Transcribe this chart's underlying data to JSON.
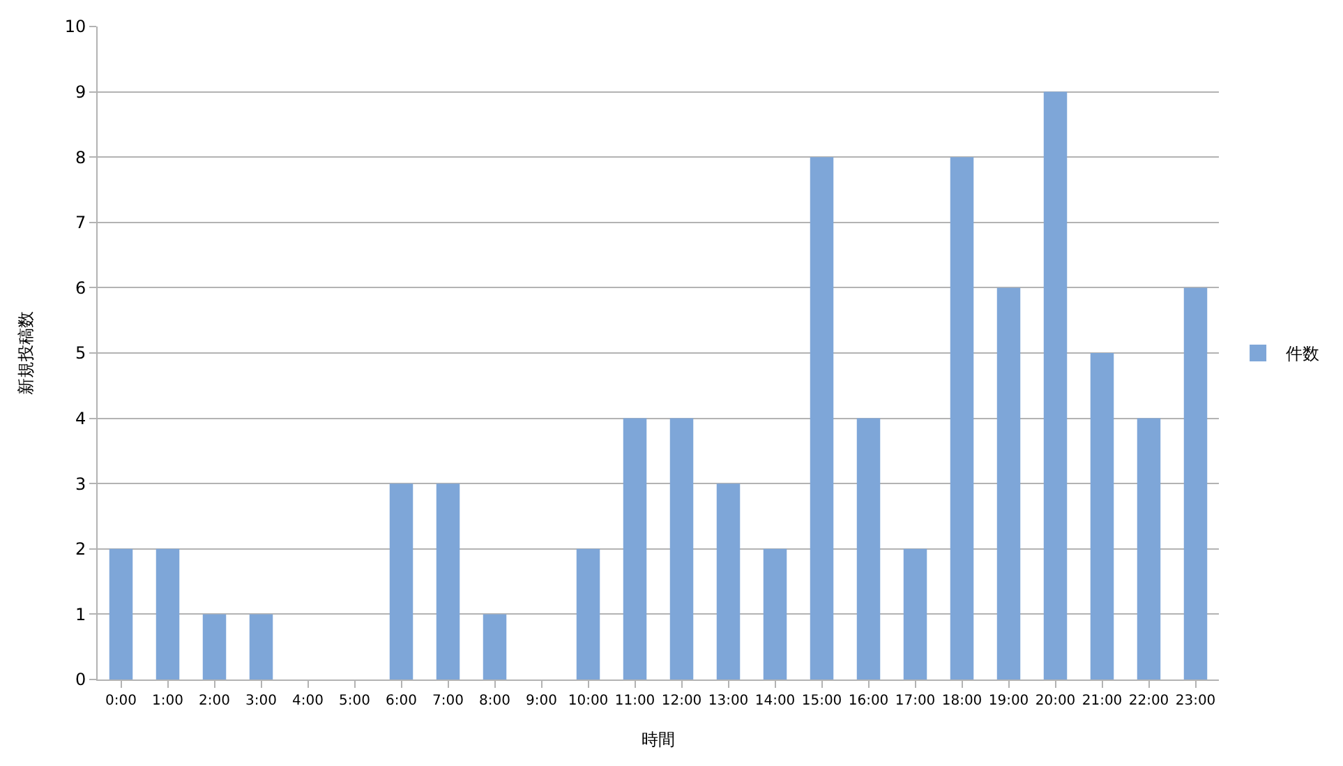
{
  "chart_data": {
    "type": "bar",
    "xlabel": "時間",
    "ylabel": "新規投稿数",
    "categories": [
      "0:00",
      "1:00",
      "2:00",
      "3:00",
      "4:00",
      "5:00",
      "6:00",
      "7:00",
      "8:00",
      "9:00",
      "10:00",
      "11:00",
      "12:00",
      "13:00",
      "14:00",
      "15:00",
      "16:00",
      "17:00",
      "18:00",
      "19:00",
      "20:00",
      "21:00",
      "22:00",
      "23:00"
    ],
    "series": [
      {
        "name": "件数",
        "color": "#7ea6d8",
        "values": [
          2,
          2,
          1,
          1,
          0,
          0,
          3,
          3,
          1,
          0,
          2,
          4,
          4,
          3,
          2,
          8,
          4,
          2,
          8,
          6,
          9,
          5,
          4,
          6
        ]
      }
    ],
    "ylim": [
      0,
      10
    ],
    "yticks": [
      0,
      1,
      2,
      3,
      4,
      5,
      6,
      7,
      8,
      9,
      10
    ],
    "grid": "y",
    "legend": "right"
  }
}
